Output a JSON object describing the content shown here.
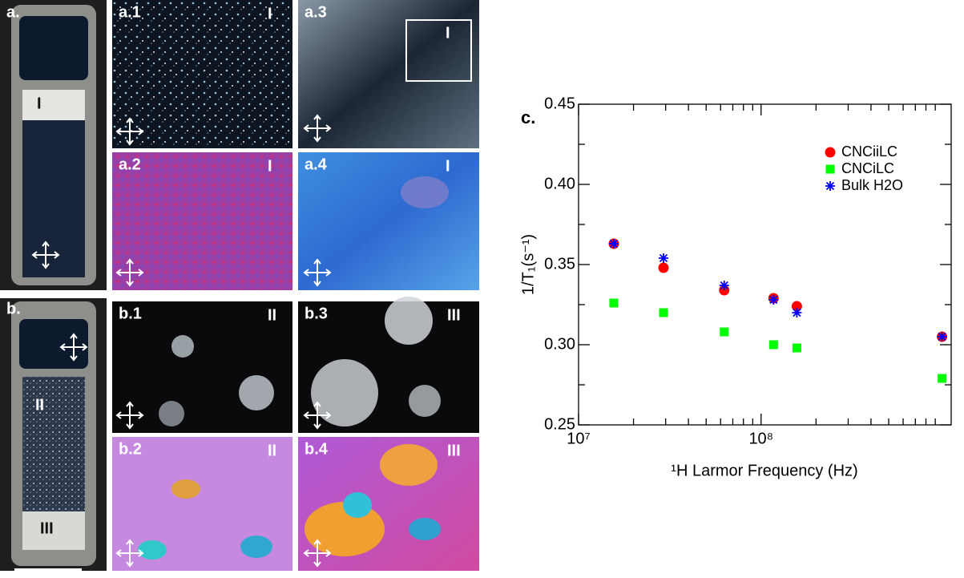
{
  "vials": [
    {
      "label": "a.",
      "regions": [
        "I"
      ]
    },
    {
      "label": "b.",
      "regions": [
        "II",
        "III"
      ]
    }
  ],
  "micrographs": [
    {
      "label": "a.1",
      "region": "I"
    },
    {
      "label": "a.2",
      "region": "I"
    },
    {
      "label": "a.3",
      "region": "I"
    },
    {
      "label": "a.4",
      "region": "I"
    },
    {
      "label": "b.1",
      "region": "II"
    },
    {
      "label": "b.2",
      "region": "II"
    },
    {
      "label": "b.3",
      "region": "III"
    },
    {
      "label": "b.4",
      "region": "III"
    }
  ],
  "chart_data": {
    "type": "scatter",
    "label": "c.",
    "x_label": "¹H Larmor Frequency (Hz)",
    "y_label": "1/T₁(s⁻¹)",
    "x": [
      15600000,
      29200000,
      62800000,
      117000000,
      157000000,
      980000000
    ],
    "series": [
      {
        "name": "CNCiiLC",
        "color": "#ff0000",
        "marker": "circle",
        "values": [
          0.363,
          0.348,
          0.334,
          0.329,
          0.324,
          0.305
        ]
      },
      {
        "name": "CNCiLC",
        "color": "#00ff00",
        "marker": "square",
        "values": [
          0.326,
          0.32,
          0.308,
          0.3,
          0.298,
          0.279
        ]
      },
      {
        "name": "Bulk H2O",
        "color": "#0000ff",
        "marker": "asterisk",
        "values": [
          0.363,
          0.354,
          0.337,
          0.328,
          0.32,
          0.305
        ]
      }
    ],
    "xlog": true,
    "xlim": [
      10000000,
      1100000000
    ],
    "xticks": [
      {
        "value": 10000000,
        "label": "10⁷"
      },
      {
        "value": 100000000,
        "label": "10⁸"
      }
    ],
    "xminorticks": [
      20000000,
      30000000,
      40000000,
      50000000,
      60000000,
      70000000,
      80000000,
      90000000,
      200000000,
      300000000,
      400000000,
      500000000,
      600000000,
      700000000,
      800000000,
      900000000
    ],
    "ylim": [
      0.25,
      0.45
    ],
    "yticks": [
      0.25,
      {
        "value": 0.3,
        "label": "0.30"
      },
      0.35,
      {
        "value": 0.4,
        "label": "0.40"
      },
      0.45
    ],
    "yminorticks": [
      0.275,
      0.325,
      0.375,
      0.425
    ],
    "grid": false,
    "legend": "upper right"
  }
}
